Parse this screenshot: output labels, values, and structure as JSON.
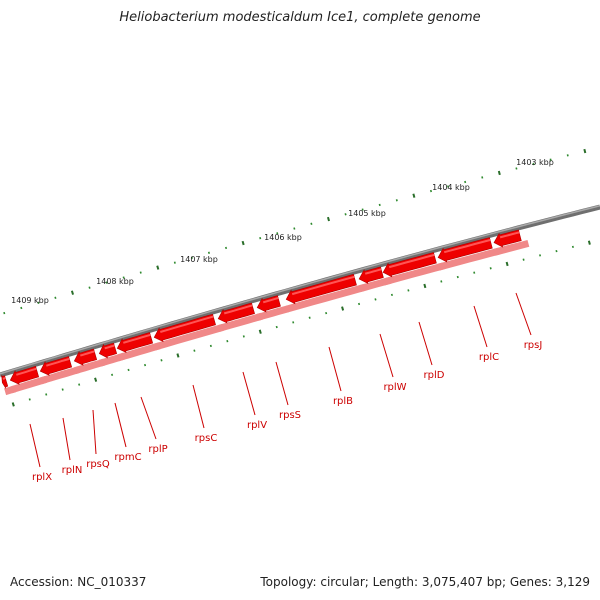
{
  "title": "Heliobacterium modesticaldum Ice1, complete genome",
  "footer": {
    "accession": "Accession: NC_010337",
    "summary": "Topology: circular; Length: 3,075,407 bp; Genes: 3,129"
  },
  "colors": {
    "gene_fill": "#ee0000",
    "gene_highlight": "#ff5555",
    "gene_shadow": "#f08888",
    "label": "#cc0000",
    "backbone": "#777777",
    "tick_major": "#2a6e2a",
    "tick_minor": "#2f8a2f"
  },
  "scale_labels": [
    "1403 kbp",
    "1404 kbp",
    "1405 kbp",
    "1406 kbp",
    "1407 kbp",
    "1408 kbp",
    "1409 kbp"
  ],
  "genes": [
    "rplX",
    "rplN",
    "rpsQ",
    "rpmC",
    "rplP",
    "rpsC",
    "rplV",
    "rpsS",
    "rplB",
    "rplW",
    "rplD",
    "rplC",
    "rpsJ"
  ]
}
